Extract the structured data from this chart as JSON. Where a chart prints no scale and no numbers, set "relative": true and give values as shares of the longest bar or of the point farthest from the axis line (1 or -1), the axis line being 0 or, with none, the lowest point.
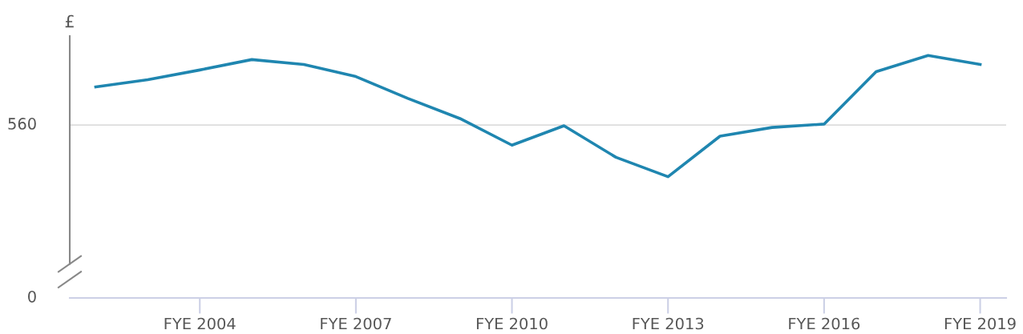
{
  "chart_data": {
    "type": "line",
    "relative": true,
    "ylabel": "£",
    "categories": [
      null,
      null,
      "FYE 2004",
      null,
      null,
      "FYE 2007",
      null,
      null,
      "FYE 2010",
      null,
      null,
      "FYE 2013",
      null,
      null,
      "FYE 2016",
      null,
      null,
      "FYE 2019"
    ],
    "series": [
      {
        "color": "#1f86b0",
        "values": [
          0.87,
          0.9,
          0.94,
          0.983,
          0.963,
          0.913,
          0.823,
          0.74,
          0.63,
          0.71,
          0.58,
          0.5,
          0.667,
          0.703,
          0.717,
          0.933,
          1,
          0.963
        ]
      }
    ],
    "ref_lines": [
      {
        "axis": "y",
        "value": 0.713,
        "color": "#dddddd"
      }
    ],
    "annotations": [
      "560",
      "0"
    ],
    "grid": false,
    "marker": "none",
    "line_style": "solid"
  }
}
